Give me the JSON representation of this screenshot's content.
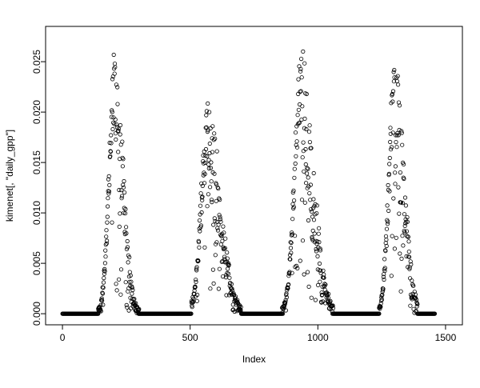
{
  "figure": {
    "background": "#ffffff",
    "foreground": "#000000"
  },
  "chart_data": {
    "type": "scatter",
    "title": "",
    "xlabel": "Index",
    "ylabel": "kimenet[, \"daily_gpp\"]",
    "marker": "open-circle",
    "grid": false,
    "legend": "none",
    "x_tick_values": [
      0,
      500,
      1000,
      1500
    ],
    "x_tick_labels": [
      "0",
      "500",
      "1000",
      "1500"
    ],
    "y_tick_values": [
      0.0,
      0.005,
      0.01,
      0.015,
      0.02,
      0.025
    ],
    "y_tick_labels": [
      "0.000",
      "0.005",
      "0.010",
      "0.015",
      "0.020",
      "0.025"
    ],
    "xlim": [
      -66,
      1566
    ],
    "ylim": [
      -0.0011,
      0.0285
    ],
    "n_points": 1460,
    "description": "Daily GPP time series over ~4 seasonal cycles; long runs of exact zeros (dormant season) interrupted by bell-shaped growing-season peaks with increasing scatter on the declining limb.",
    "zero_segments": [
      [
        0,
        140
      ],
      [
        300,
        505
      ],
      [
        700,
        860
      ],
      [
        1060,
        1240
      ],
      [
        1390,
        1459
      ]
    ],
    "seasons": [
      {
        "start": 140,
        "peak_x": 205,
        "end": 300,
        "peak_y": 0.0255,
        "sigma_left": 22,
        "sigma_right": 32
      },
      {
        "start": 505,
        "peak_x": 570,
        "end": 700,
        "peak_y": 0.0205,
        "sigma_left": 26,
        "sigma_right": 48
      },
      {
        "start": 860,
        "peak_x": 935,
        "end": 1060,
        "peak_y": 0.0255,
        "sigma_left": 26,
        "sigma_right": 46
      },
      {
        "start": 1240,
        "peak_x": 1300,
        "end": 1390,
        "peak_y": 0.0245,
        "sigma_left": 22,
        "sigma_right": 36
      }
    ],
    "noise_seed": 42
  }
}
